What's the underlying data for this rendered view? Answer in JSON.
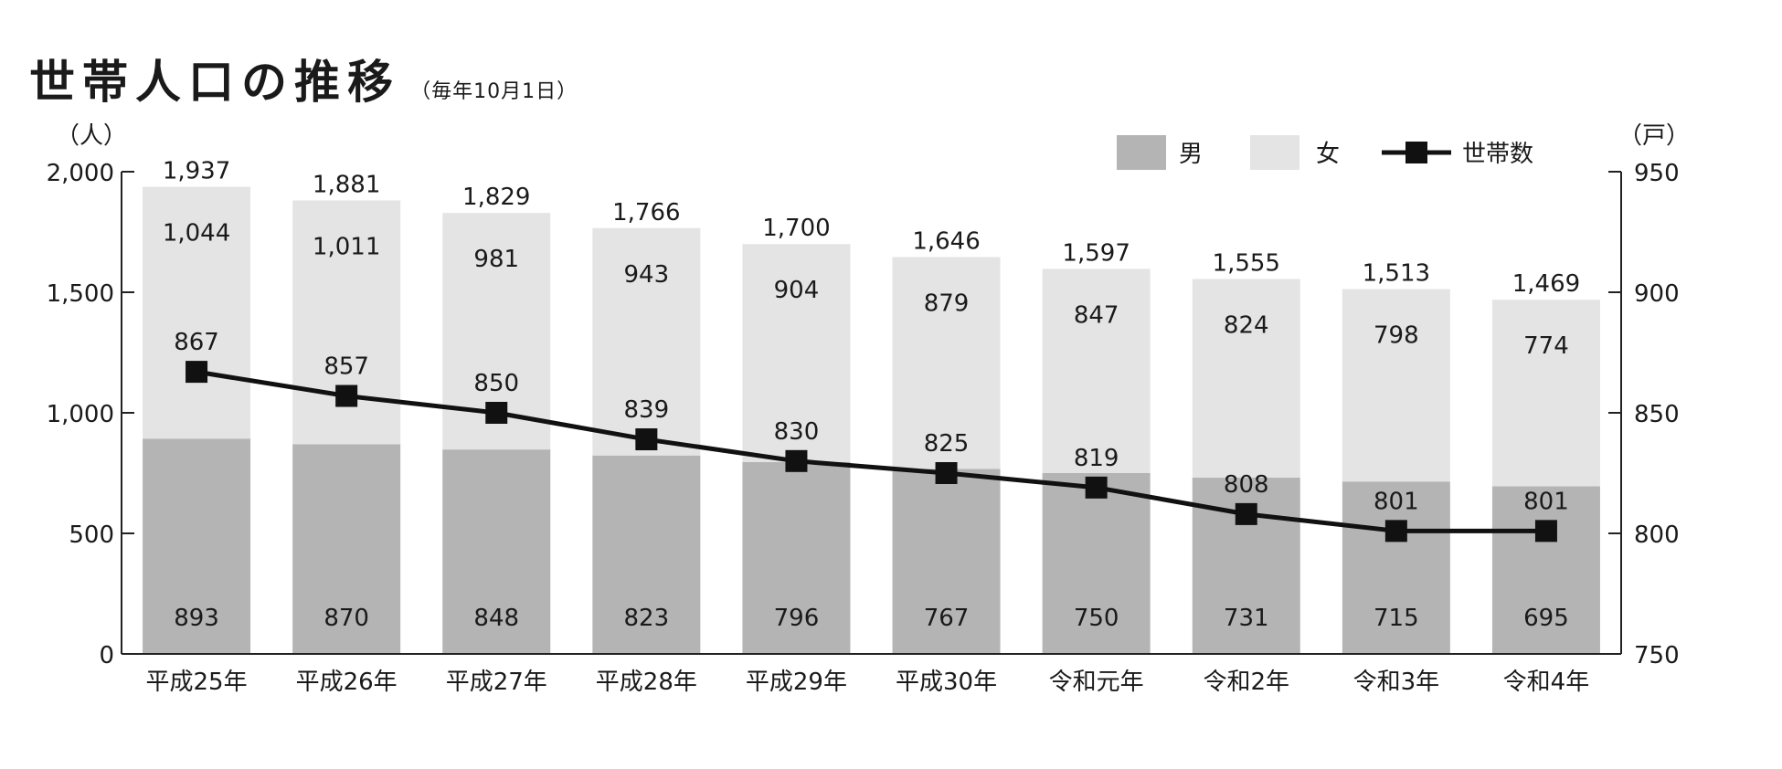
{
  "title": "世帯人口の推移",
  "subtitle": "（毎年10月1日）",
  "colors": {
    "male": "#b4b4b4",
    "female": "#e4e4e4",
    "line": "#111111"
  },
  "chart_data": {
    "type": "bar",
    "stacked": true,
    "title": "世帯人口の推移",
    "subtitle": "（毎年10月1日）",
    "categories": [
      "平成25年",
      "平成26年",
      "平成27年",
      "平成28年",
      "平成29年",
      "平成30年",
      "令和元年",
      "令和2年",
      "令和3年",
      "令和4年"
    ],
    "series": [
      {
        "name": "男",
        "values": [
          893,
          870,
          848,
          823,
          796,
          767,
          750,
          731,
          715,
          695
        ],
        "axis": "left"
      },
      {
        "name": "女",
        "values": [
          1044,
          1011,
          981,
          943,
          904,
          879,
          847,
          824,
          798,
          774
        ],
        "axis": "left"
      },
      {
        "name": "世帯数",
        "type": "line",
        "values": [
          867,
          857,
          850,
          839,
          830,
          825,
          819,
          808,
          801,
          801
        ],
        "axis": "right"
      }
    ],
    "totals": [
      1937,
      1881,
      1829,
      1766,
      1700,
      1646,
      1597,
      1555,
      1513,
      1469
    ],
    "total_labels": [
      "1,937",
      "1,881",
      "1,829",
      "1,766",
      "1,700",
      "1,646",
      "1,597",
      "1,555",
      "1,513",
      "1,469"
    ],
    "ylabel": "（人）",
    "y2label": "（戸）",
    "ylim": [
      0,
      2000
    ],
    "y2lim": [
      750,
      950
    ],
    "yticks": [
      0,
      500,
      1000,
      1500,
      2000
    ],
    "ytick_labels": [
      "0",
      "500",
      "1,000",
      "1,500",
      "2,000"
    ],
    "y2ticks": [
      750,
      800,
      850,
      900,
      950
    ],
    "y2tick_labels": [
      "750",
      "800",
      "850",
      "900",
      "950"
    ],
    "legend_position": "top-right",
    "grid": false
  }
}
